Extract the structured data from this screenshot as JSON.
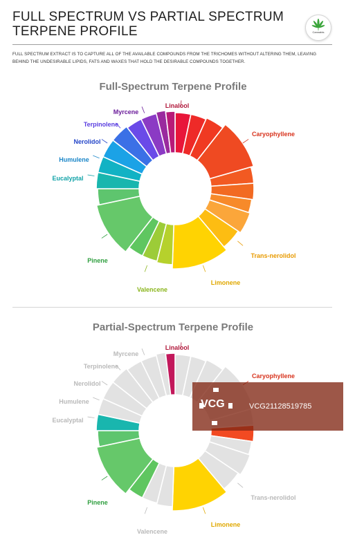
{
  "header": {
    "title_line1": "Full Spectrum vs Partial Spectrum",
    "title_line2": "Terpene Profile",
    "logo_text": "Cannabis"
  },
  "intro_text": "Full spectrum extract is to capture all of the available compounds from the trichomes without altering them, leaving behind the undesirable lipids, fats and waxes that hold the desirable compounds together.",
  "colors": {
    "muted": "#e2e2e2",
    "section_title": "#7a7a7a"
  },
  "full_spectrum": {
    "title": "Full-Spectrum Terpene Profile",
    "labels": [
      {
        "text": "Linalool",
        "color": "#b0173a"
      },
      {
        "text": "Myrcene",
        "color": "#6a1b9a"
      },
      {
        "text": "Terpinolene",
        "color": "#5a3ee0"
      },
      {
        "text": "Nerolidol",
        "color": "#2244c8"
      },
      {
        "text": "Humulene",
        "color": "#1b86c8"
      },
      {
        "text": "Eucalyptal",
        "color": "#12a3a8"
      },
      {
        "text": "Pinene",
        "color": "#2e9e3e"
      },
      {
        "text": "Valencene",
        "color": "#8ab51c"
      },
      {
        "text": "Limonene",
        "color": "#e0a800"
      },
      {
        "text": "Trans-nerolidol",
        "color": "#e89a00"
      },
      {
        "text": "Caryophyllene",
        "color": "#d8341e"
      }
    ]
  },
  "partial_spectrum": {
    "title": "Partial-Spectrum Terpene Profile",
    "labels": [
      {
        "text": "Linalool",
        "color": "#b0173a"
      },
      {
        "text": "Myrcene",
        "color": "#b9b9b9"
      },
      {
        "text": "Terpinolene",
        "color": "#b9b9b9"
      },
      {
        "text": "Nerolidol",
        "color": "#b9b9b9"
      },
      {
        "text": "Humulene",
        "color": "#b9b9b9"
      },
      {
        "text": "Eucalyptal",
        "color": "#b9b9b9"
      },
      {
        "text": "Pinene",
        "color": "#2e9e3e"
      },
      {
        "text": "Valencene",
        "color": "#b9b9b9"
      },
      {
        "text": "Limonene",
        "color": "#e0a800"
      },
      {
        "text": "Trans-nerolidol",
        "color": "#b9b9b9"
      },
      {
        "text": "Caryophyllene",
        "color": "#d8341e"
      }
    ]
  },
  "watermark": {
    "logo": "VCG",
    "id": "VCG21128519785"
  }
}
